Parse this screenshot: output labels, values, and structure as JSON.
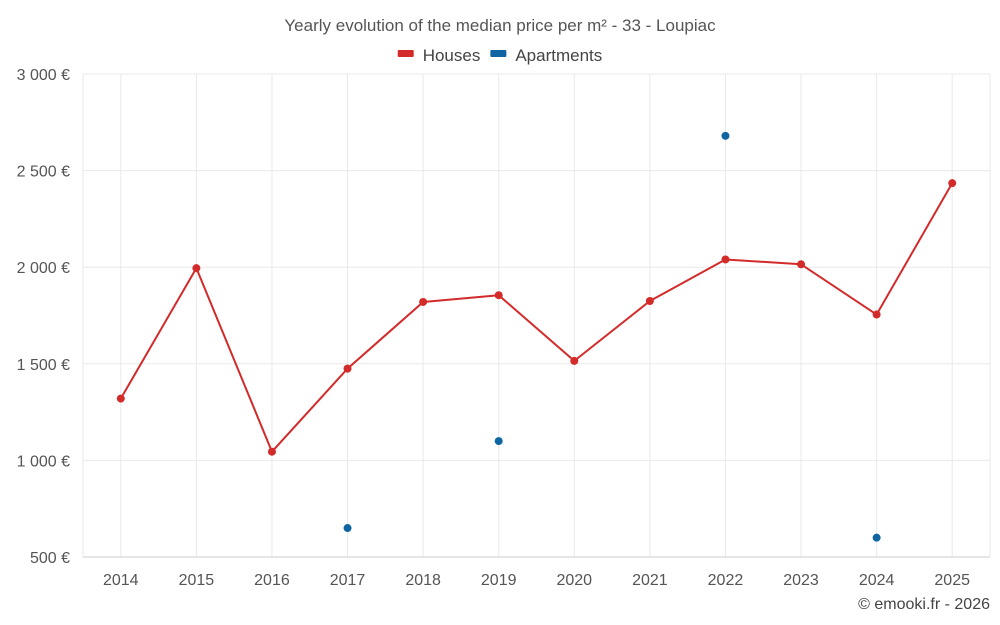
{
  "chart_data": {
    "type": "line",
    "title": "Yearly evolution of the median price per m² - 33 - Loupiac",
    "categories": [
      "2014",
      "2015",
      "2016",
      "2017",
      "2018",
      "2019",
      "2020",
      "2021",
      "2022",
      "2023",
      "2024",
      "2025"
    ],
    "series": [
      {
        "name": "Houses",
        "color": "#d32a2a",
        "style": "line",
        "values": [
          1320,
          1995,
          1045,
          1475,
          1820,
          1855,
          1515,
          1825,
          2040,
          2015,
          1755,
          2435
        ]
      },
      {
        "name": "Apartments",
        "color": "#0f65a1",
        "style": "points",
        "values": [
          null,
          null,
          null,
          650,
          null,
          1100,
          null,
          null,
          2680,
          null,
          600,
          null
        ]
      }
    ],
    "ylim": [
      500,
      3000
    ],
    "yticks": [
      500,
      1000,
      1500,
      2000,
      2500,
      3000
    ],
    "ytick_labels": [
      "500 €",
      "1 000 €",
      "1 500 €",
      "2 000 €",
      "2 500 €",
      "3 000 €"
    ],
    "xlabel": "",
    "ylabel": "",
    "legend_position": "top-center",
    "grid": true
  },
  "credit": "© emooki.fr - 2026"
}
